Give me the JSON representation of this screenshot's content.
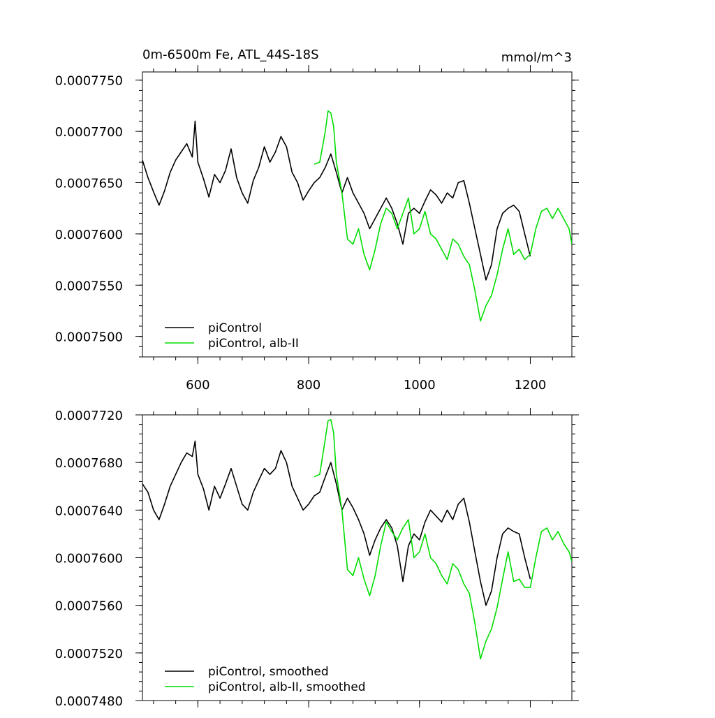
{
  "chart_data": [
    {
      "type": "line",
      "title": "0m-6500m Fe, ATL_44S-18S",
      "units": "mmol/m^3",
      "xlim": [
        500,
        1275
      ],
      "ylim": [
        0.000748,
        0.0007758
      ],
      "x_ticks": [
        600,
        800,
        1000,
        1200
      ],
      "y_ticks": [
        "0.0007500",
        "0.0007550",
        "0.0007600",
        "0.0007650",
        "0.0007700",
        "0.0007750"
      ],
      "grid": false,
      "legend_position": "bottom-left",
      "series": [
        {
          "name": "piControl",
          "color": "#000000",
          "points": [
            [
              500,
              0.0007672
            ],
            [
              510,
              0.0007655
            ],
            [
              520,
              0.0007641
            ],
            [
              530,
              0.0007628
            ],
            [
              540,
              0.0007642
            ],
            [
              550,
              0.000766
            ],
            [
              560,
              0.0007672
            ],
            [
              570,
              0.000768
            ],
            [
              580,
              0.0007688
            ],
            [
              590,
              0.0007675
            ],
            [
              595,
              0.000771
            ],
            [
              600,
              0.000767
            ],
            [
              610,
              0.0007654
            ],
            [
              620,
              0.0007636
            ],
            [
              630,
              0.0007658
            ],
            [
              640,
              0.000765
            ],
            [
              650,
              0.0007662
            ],
            [
              660,
              0.0007683
            ],
            [
              670,
              0.0007655
            ],
            [
              680,
              0.000764
            ],
            [
              690,
              0.000763
            ],
            [
              700,
              0.0007652
            ],
            [
              710,
              0.0007665
            ],
            [
              720,
              0.0007685
            ],
            [
              730,
              0.000767
            ],
            [
              740,
              0.000768
            ],
            [
              750,
              0.0007695
            ],
            [
              760,
              0.0007685
            ],
            [
              770,
              0.000766
            ],
            [
              780,
              0.000765
            ],
            [
              790,
              0.0007633
            ],
            [
              800,
              0.0007642
            ],
            [
              810,
              0.000765
            ],
            [
              820,
              0.0007655
            ],
            [
              830,
              0.0007665
            ],
            [
              840,
              0.0007678
            ],
            [
              850,
              0.000766
            ],
            [
              860,
              0.000764
            ],
            [
              870,
              0.0007655
            ],
            [
              880,
              0.000764
            ],
            [
              890,
              0.000763
            ],
            [
              900,
              0.000762
            ],
            [
              910,
              0.0007605
            ],
            [
              920,
              0.0007615
            ],
            [
              930,
              0.0007625
            ],
            [
              940,
              0.0007635
            ],
            [
              950,
              0.0007625
            ],
            [
              960,
              0.000761
            ],
            [
              970,
              0.000759
            ],
            [
              980,
              0.000762
            ],
            [
              990,
              0.0007625
            ],
            [
              1000,
              0.000762
            ],
            [
              1010,
              0.0007632
            ],
            [
              1020,
              0.0007643
            ],
            [
              1030,
              0.0007638
            ],
            [
              1040,
              0.000763
            ],
            [
              1050,
              0.000764
            ],
            [
              1060,
              0.0007635
            ],
            [
              1070,
              0.000765
            ],
            [
              1080,
              0.0007652
            ],
            [
              1090,
              0.000763
            ],
            [
              1100,
              0.0007605
            ],
            [
              1110,
              0.000758
            ],
            [
              1120,
              0.0007555
            ],
            [
              1130,
              0.000757
            ],
            [
              1140,
              0.0007605
            ],
            [
              1150,
              0.000762
            ],
            [
              1160,
              0.0007625
            ],
            [
              1170,
              0.0007628
            ],
            [
              1180,
              0.0007622
            ],
            [
              1190,
              0.00076
            ],
            [
              1200,
              0.0007578
            ]
          ]
        },
        {
          "name": "piControl, alb-II",
          "color": "#00dd00",
          "points": [
            [
              810,
              0.0007668
            ],
            [
              820,
              0.000767
            ],
            [
              830,
              0.00077
            ],
            [
              835,
              0.000772
            ],
            [
              840,
              0.0007718
            ],
            [
              845,
              0.0007705
            ],
            [
              850,
              0.000767
            ],
            [
              860,
              0.000764
            ],
            [
              870,
              0.0007595
            ],
            [
              880,
              0.000759
            ],
            [
              890,
              0.0007605
            ],
            [
              900,
              0.000758
            ],
            [
              910,
              0.0007565
            ],
            [
              920,
              0.0007585
            ],
            [
              930,
              0.000761
            ],
            [
              940,
              0.0007625
            ],
            [
              950,
              0.000762
            ],
            [
              960,
              0.0007605
            ],
            [
              970,
              0.000762
            ],
            [
              980,
              0.0007635
            ],
            [
              990,
              0.00076
            ],
            [
              1000,
              0.0007605
            ],
            [
              1010,
              0.0007622
            ],
            [
              1020,
              0.00076
            ],
            [
              1030,
              0.0007595
            ],
            [
              1040,
              0.0007585
            ],
            [
              1050,
              0.0007575
            ],
            [
              1060,
              0.0007595
            ],
            [
              1070,
              0.000759
            ],
            [
              1080,
              0.0007578
            ],
            [
              1090,
              0.000757
            ],
            [
              1100,
              0.0007545
            ],
            [
              1110,
              0.0007515
            ],
            [
              1120,
              0.000753
            ],
            [
              1130,
              0.000754
            ],
            [
              1140,
              0.000756
            ],
            [
              1150,
              0.0007585
            ],
            [
              1160,
              0.0007605
            ],
            [
              1170,
              0.000758
            ],
            [
              1180,
              0.0007585
            ],
            [
              1190,
              0.0007575
            ],
            [
              1200,
              0.000758
            ],
            [
              1210,
              0.0007605
            ],
            [
              1220,
              0.0007622
            ],
            [
              1230,
              0.0007625
            ],
            [
              1240,
              0.0007615
            ],
            [
              1250,
              0.0007625
            ],
            [
              1260,
              0.0007615
            ],
            [
              1270,
              0.0007605
            ],
            [
              1275,
              0.000759
            ]
          ]
        }
      ]
    },
    {
      "type": "line",
      "title": "",
      "xlim": [
        500,
        1275
      ],
      "ylim": [
        0.000748,
        0.000772
      ],
      "x_ticks": [
        600,
        800,
        1000,
        1200
      ],
      "y_ticks": [
        "0.0007480",
        "0.0007520",
        "0.0007560",
        "0.0007600",
        "0.0007640",
        "0.0007680",
        "0.0007720"
      ],
      "grid": false,
      "legend_position": "bottom-left",
      "series": [
        {
          "name": "piControl, smoothed",
          "color": "#000000",
          "points": [
            [
              500,
              0.0007662
            ],
            [
              510,
              0.0007655
            ],
            [
              520,
              0.000764
            ],
            [
              530,
              0.0007632
            ],
            [
              540,
              0.0007645
            ],
            [
              550,
              0.000766
            ],
            [
              560,
              0.000767
            ],
            [
              570,
              0.000768
            ],
            [
              580,
              0.0007688
            ],
            [
              590,
              0.0007685
            ],
            [
              595,
              0.0007698
            ],
            [
              600,
              0.000767
            ],
            [
              610,
              0.0007658
            ],
            [
              620,
              0.000764
            ],
            [
              630,
              0.000766
            ],
            [
              640,
              0.000765
            ],
            [
              650,
              0.0007662
            ],
            [
              660,
              0.0007675
            ],
            [
              670,
              0.000766
            ],
            [
              680,
              0.0007645
            ],
            [
              690,
              0.000764
            ],
            [
              700,
              0.0007655
            ],
            [
              710,
              0.0007665
            ],
            [
              720,
              0.0007675
            ],
            [
              730,
              0.000767
            ],
            [
              740,
              0.0007675
            ],
            [
              750,
              0.000769
            ],
            [
              760,
              0.000768
            ],
            [
              770,
              0.000766
            ],
            [
              780,
              0.000765
            ],
            [
              790,
              0.000764
            ],
            [
              800,
              0.0007645
            ],
            [
              810,
              0.0007652
            ],
            [
              820,
              0.0007655
            ],
            [
              830,
              0.0007668
            ],
            [
              840,
              0.000768
            ],
            [
              850,
              0.0007662
            ],
            [
              860,
              0.000764
            ],
            [
              870,
              0.000765
            ],
            [
              880,
              0.0007642
            ],
            [
              890,
              0.0007632
            ],
            [
              900,
              0.000762
            ],
            [
              910,
              0.0007602
            ],
            [
              920,
              0.0007615
            ],
            [
              930,
              0.0007625
            ],
            [
              940,
              0.0007632
            ],
            [
              950,
              0.0007625
            ],
            [
              960,
              0.000761
            ],
            [
              970,
              0.000758
            ],
            [
              980,
              0.000761
            ],
            [
              990,
              0.000762
            ],
            [
              1000,
              0.0007615
            ],
            [
              1010,
              0.000763
            ],
            [
              1020,
              0.000764
            ],
            [
              1030,
              0.0007635
            ],
            [
              1040,
              0.000763
            ],
            [
              1050,
              0.000764
            ],
            [
              1060,
              0.0007632
            ],
            [
              1070,
              0.0007645
            ],
            [
              1080,
              0.000765
            ],
            [
              1090,
              0.000763
            ],
            [
              1100,
              0.0007605
            ],
            [
              1110,
              0.000758
            ],
            [
              1120,
              0.000756
            ],
            [
              1130,
              0.0007572
            ],
            [
              1140,
              0.00076
            ],
            [
              1150,
              0.000762
            ],
            [
              1160,
              0.0007625
            ],
            [
              1170,
              0.0007622
            ],
            [
              1180,
              0.000762
            ],
            [
              1190,
              0.00076
            ],
            [
              1200,
              0.0007582
            ]
          ]
        },
        {
          "name": "piControl, alb-II, smoothed",
          "color": "#00dd00",
          "points": [
            [
              810,
              0.0007668
            ],
            [
              820,
              0.000767
            ],
            [
              830,
              0.00077
            ],
            [
              835,
              0.0007715
            ],
            [
              840,
              0.0007716
            ],
            [
              845,
              0.0007705
            ],
            [
              850,
              0.000767
            ],
            [
              860,
              0.000764
            ],
            [
              870,
              0.000759
            ],
            [
              880,
              0.0007585
            ],
            [
              890,
              0.00076
            ],
            [
              900,
              0.0007582
            ],
            [
              910,
              0.0007568
            ],
            [
              920,
              0.0007585
            ],
            [
              930,
              0.000761
            ],
            [
              940,
              0.000763
            ],
            [
              950,
              0.0007622
            ],
            [
              960,
              0.0007615
            ],
            [
              970,
              0.0007625
            ],
            [
              980,
              0.0007632
            ],
            [
              990,
              0.00076
            ],
            [
              1000,
              0.0007605
            ],
            [
              1010,
              0.000762
            ],
            [
              1020,
              0.00076
            ],
            [
              1030,
              0.0007595
            ],
            [
              1040,
              0.0007585
            ],
            [
              1050,
              0.0007578
            ],
            [
              1060,
              0.0007595
            ],
            [
              1070,
              0.000759
            ],
            [
              1080,
              0.0007578
            ],
            [
              1090,
              0.000757
            ],
            [
              1100,
              0.0007545
            ],
            [
              1110,
              0.0007515
            ],
            [
              1120,
              0.000753
            ],
            [
              1130,
              0.000754
            ],
            [
              1140,
              0.0007558
            ],
            [
              1150,
              0.0007582
            ],
            [
              1160,
              0.0007605
            ],
            [
              1170,
              0.000758
            ],
            [
              1180,
              0.0007582
            ],
            [
              1190,
              0.0007575
            ],
            [
              1200,
              0.0007575
            ],
            [
              1210,
              0.00076
            ],
            [
              1220,
              0.0007622
            ],
            [
              1230,
              0.0007625
            ],
            [
              1240,
              0.0007615
            ],
            [
              1250,
              0.0007622
            ],
            [
              1260,
              0.0007612
            ],
            [
              1270,
              0.0007605
            ],
            [
              1275,
              0.0007597
            ]
          ]
        }
      ]
    }
  ]
}
